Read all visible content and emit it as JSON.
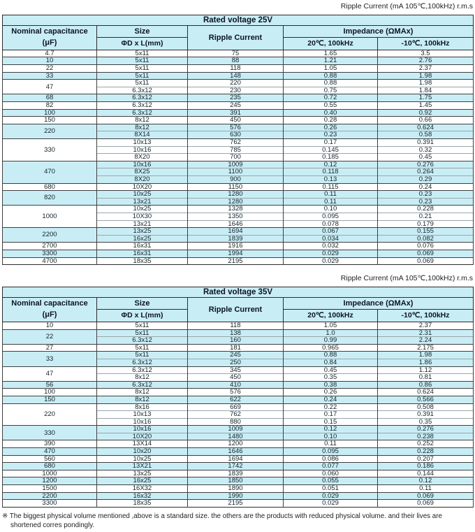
{
  "top_label": "Ripple Current (mA 105℃,100kHz) r.m.s",
  "footnote": {
    "marker": "※",
    "text": " The biggest physical volume mentioned ,above is a standard size. the others are the products with reduced physical volume. and their lives are shortened corres pondingly."
  },
  "colors": {
    "band_cyan": "#c9edf5",
    "row_cyan": "#c9edf5",
    "border_dark": "#2b2b2b",
    "inner_line": "#98a7ac"
  },
  "tables": [
    {
      "title": "Rated voltage 25V",
      "columns": {
        "capacitance_line1": "Nominal capacitance",
        "capacitance_line2": "(μF)",
        "size_line1": "Size",
        "size_line2": "ΦD x L(mm)",
        "ripple": "Ripple Current",
        "impedance": "Impedance (ΩMAx)",
        "imp_sub_20": "20℃, 100kHz",
        "imp_sub_m10": "-10℃, 100kHz"
      },
      "groups": [
        {
          "capacitance": "4.7",
          "rows": [
            {
              "size": "5x11",
              "ripple": "75",
              "imp20": "1.65",
              "impm10": "3.5"
            }
          ]
        },
        {
          "capacitance": "10",
          "rows": [
            {
              "size": "5x11",
              "ripple": "88",
              "imp20": "1.21",
              "impm10": "2.76"
            }
          ]
        },
        {
          "capacitance": "22",
          "rows": [
            {
              "size": "5x11",
              "ripple": "118",
              "imp20": "1.05",
              "impm10": "2.37"
            }
          ]
        },
        {
          "capacitance": "33",
          "rows": [
            {
              "size": "5x11",
              "ripple": "148",
              "imp20": "0.88",
              "impm10": "1.98"
            }
          ]
        },
        {
          "capacitance": "47",
          "rows": [
            {
              "size": "5x11",
              "ripple": "220",
              "imp20": "0.88",
              "impm10": "1.98"
            },
            {
              "size": "6.3x12",
              "ripple": "230",
              "imp20": "0.75",
              "impm10": "1.84"
            }
          ]
        },
        {
          "capacitance": "68",
          "rows": [
            {
              "size": "6.3x12",
              "ripple": "235",
              "imp20": "0.72",
              "impm10": "1.75"
            }
          ]
        },
        {
          "capacitance": "82",
          "rows": [
            {
              "size": "6.3x12",
              "ripple": "245",
              "imp20": "0.55",
              "impm10": "1.45"
            }
          ]
        },
        {
          "capacitance": "100",
          "rows": [
            {
              "size": "6.3x12",
              "ripple": "391",
              "imp20": "0.40",
              "impm10": "0.92"
            }
          ]
        },
        {
          "capacitance": "150",
          "rows": [
            {
              "size": "8x12",
              "ripple": "450",
              "imp20": "0.28",
              "impm10": "0.66"
            }
          ]
        },
        {
          "capacitance": "220",
          "rows": [
            {
              "size": "8x12",
              "ripple": "576",
              "imp20": "0.26",
              "impm10": "0.624"
            },
            {
              "size": "8X14",
              "ripple": "630",
              "imp20": "0.23",
              "impm10": "0.58"
            }
          ]
        },
        {
          "capacitance": "330",
          "rows": [
            {
              "size": "10x13",
              "ripple": "762",
              "imp20": "0.17",
              "impm10": "0.391"
            },
            {
              "size": "10x16",
              "ripple": "785",
              "imp20": "0.145",
              "impm10": "0.32"
            },
            {
              "size": "8X20",
              "ripple": "700",
              "imp20": "0.185",
              "impm10": "0.45"
            }
          ]
        },
        {
          "capacitance": "470",
          "rows": [
            {
              "size": "10x16",
              "ripple": "1009",
              "imp20": "0.12",
              "impm10": "0.276"
            },
            {
              "size": "8X25",
              "ripple": "1100",
              "imp20": "0.118",
              "impm10": "0.264"
            },
            {
              "size": "8X20",
              "ripple": "900",
              "imp20": "0.13",
              "impm10": "0.29"
            }
          ]
        },
        {
          "capacitance": "680",
          "rows": [
            {
              "size": "10X20",
              "ripple": "1150",
              "imp20": "0.115",
              "impm10": "0.24"
            }
          ]
        },
        {
          "capacitance": "820",
          "rows": [
            {
              "size": "10x25",
              "ripple": "1280",
              "imp20": "0.11",
              "impm10": "0.23"
            },
            {
              "size": "13x21",
              "ripple": "1280",
              "imp20": "0.11",
              "impm10": "0.23"
            }
          ]
        },
        {
          "capacitance": "1000",
          "rows": [
            {
              "size": "10x25",
              "ripple": "1328",
              "imp20": "0.10",
              "impm10": "0.228"
            },
            {
              "size": "10X30",
              "ripple": "1350",
              "imp20": "0.095",
              "impm10": "0.21"
            },
            {
              "size": "13x21",
              "ripple": "1646",
              "imp20": "0.078",
              "impm10": "0.179"
            }
          ]
        },
        {
          "capacitance": "2200",
          "rows": [
            {
              "size": "13x25",
              "ripple": "1694",
              "imp20": "0.067",
              "impm10": "0.155"
            },
            {
              "size": "16x25",
              "ripple": "1839",
              "imp20": "0.034",
              "impm10": "0.082"
            }
          ]
        },
        {
          "capacitance": "2700",
          "rows": [
            {
              "size": "16x31",
              "ripple": "1916",
              "imp20": "0.032",
              "impm10": "0.076"
            }
          ]
        },
        {
          "capacitance": "3300",
          "rows": [
            {
              "size": "16x31",
              "ripple": "1994",
              "imp20": "0.029",
              "impm10": "0.069"
            }
          ]
        },
        {
          "capacitance": "4700",
          "rows": [
            {
              "size": "18x35",
              "ripple": "2195",
              "imp20": "0.029",
              "impm10": "0.069"
            }
          ]
        }
      ]
    },
    {
      "title": "Rated voltage 35V",
      "columns": {
        "capacitance_line1": "Nominal capacitance",
        "capacitance_line2": "(μF)",
        "size_line1": "Size",
        "size_line2": "ΦD x L(mm)",
        "ripple": "Ripple Current",
        "impedance": "Impedance (ΩMAx)",
        "imp_sub_20": "20℃, 100kHz",
        "imp_sub_m10": "-10℃, 100kHz"
      },
      "groups": [
        {
          "capacitance": "10",
          "rows": [
            {
              "size": "5x11",
              "ripple": "118",
              "imp20": "1.05",
              "impm10": "2.37"
            }
          ]
        },
        {
          "capacitance": "22",
          "rows": [
            {
              "size": "5x11",
              "ripple": "138",
              "imp20": "1.0",
              "impm10": "2.31"
            },
            {
              "size": "6.3x12",
              "ripple": "160",
              "imp20": "0.99",
              "impm10": "2.24"
            }
          ]
        },
        {
          "capacitance": "27",
          "rows": [
            {
              "size": "5x11",
              "ripple": "181",
              "imp20": "0.965",
              "impm10": "2.175"
            }
          ]
        },
        {
          "capacitance": "33",
          "rows": [
            {
              "size": "5x11",
              "ripple": "245",
              "imp20": "0.88",
              "impm10": "1.98"
            },
            {
              "size": "6.3x12",
              "ripple": "250",
              "imp20": "0.84",
              "impm10": "1.86"
            }
          ]
        },
        {
          "capacitance": "47",
          "rows": [
            {
              "size": "6.3x12",
              "ripple": "345",
              "imp20": "0.45",
              "impm10": "1.12"
            },
            {
              "size": "8x12",
              "ripple": "450",
              "imp20": "0.35",
              "impm10": "0.81"
            }
          ]
        },
        {
          "capacitance": "56",
          "rows": [
            {
              "size": "6.3x12",
              "ripple": "410",
              "imp20": "0.38",
              "impm10": "0.86"
            }
          ]
        },
        {
          "capacitance": "100",
          "rows": [
            {
              "size": "8x12",
              "ripple": "576",
              "imp20": "0.26",
              "impm10": "0.624"
            }
          ]
        },
        {
          "capacitance": "150",
          "rows": [
            {
              "size": "8x12",
              "ripple": "622",
              "imp20": "0.24",
              "impm10": "0.566"
            }
          ]
        },
        {
          "capacitance": "220",
          "rows": [
            {
              "size": "8x16",
              "ripple": "669",
              "imp20": "0.22",
              "impm10": "0.508"
            },
            {
              "size": "10x13",
              "ripple": "762",
              "imp20": "0.17",
              "impm10": "0.391"
            },
            {
              "size": "10x16",
              "ripple": "880",
              "imp20": "0.15",
              "impm10": "0.35"
            }
          ]
        },
        {
          "capacitance": "330",
          "rows": [
            {
              "size": "10x16",
              "ripple": "1009",
              "imp20": "0.12",
              "impm10": "0.276"
            },
            {
              "size": "10X20",
              "ripple": "1480",
              "imp20": "0.10",
              "impm10": "0.238"
            }
          ]
        },
        {
          "capacitance": "390",
          "rows": [
            {
              "size": "13X14",
              "ripple": "1200",
              "imp20": "0.11",
              "impm10": "0.252"
            }
          ]
        },
        {
          "capacitance": "470",
          "rows": [
            {
              "size": "10x20",
              "ripple": "1646",
              "imp20": "0.095",
              "impm10": "0.228"
            }
          ]
        },
        {
          "capacitance": "560",
          "rows": [
            {
              "size": "10x25",
              "ripple": "1694",
              "imp20": "0.086",
              "impm10": "0.207"
            }
          ]
        },
        {
          "capacitance": "680",
          "rows": [
            {
              "size": "13X21",
              "ripple": "1742",
              "imp20": "0.077",
              "impm10": "0.186"
            }
          ]
        },
        {
          "capacitance": "1000",
          "rows": [
            {
              "size": "13x25",
              "ripple": "1839",
              "imp20": "0.060",
              "impm10": "0.144"
            }
          ]
        },
        {
          "capacitance": "1200",
          "rows": [
            {
              "size": "16x25",
              "ripple": "1850",
              "imp20": "0.055",
              "impm10": "0.12"
            }
          ]
        },
        {
          "capacitance": "1500",
          "rows": [
            {
              "size": "16X32",
              "ripple": "1890",
              "imp20": "0.051",
              "impm10": "0.11"
            }
          ]
        },
        {
          "capacitance": "2200",
          "rows": [
            {
              "size": "16x32",
              "ripple": "1990",
              "imp20": "0.029",
              "impm10": "0.069"
            }
          ]
        },
        {
          "capacitance": "3300",
          "rows": [
            {
              "size": "18x35",
              "ripple": "2195",
              "imp20": "0.029",
              "impm10": "0.069"
            }
          ]
        }
      ]
    }
  ]
}
